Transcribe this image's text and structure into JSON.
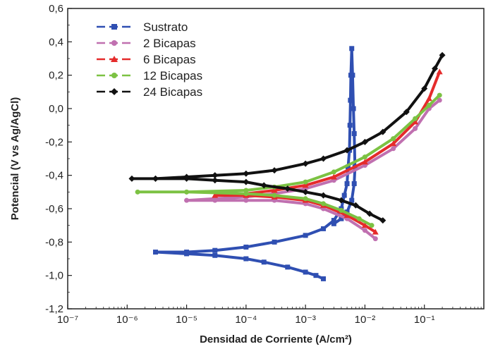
{
  "chart_data": {
    "type": "line",
    "xlabel": "Densidad de Corriente (A/cm²)",
    "ylabel": "Potencial (V vs Ag/AgCl)",
    "x_scale": "log",
    "xlim": [
      1e-07,
      1
    ],
    "ylim": [
      -1.2,
      0.6
    ],
    "x_ticks": [
      "10⁻⁷",
      "10⁻⁶",
      "10⁻⁵",
      "10⁻⁴",
      "10⁻³",
      "10⁻²",
      "10⁻¹"
    ],
    "y_ticks": [
      "-1,2",
      "-1,0",
      "-0,8",
      "-0,6",
      "-0,4",
      "-0,2",
      "0,0",
      "0,2",
      "0,4",
      "0,6"
    ],
    "legend_position": "top-left",
    "grid": false,
    "series": [
      {
        "name": "Sustrato",
        "color": "#2f4fb2",
        "marker": "square",
        "points": [
          [
            0.002,
            -1.02
          ],
          [
            0.0015,
            -1.0
          ],
          [
            0.001,
            -0.98
          ],
          [
            0.0005,
            -0.95
          ],
          [
            0.0002,
            -0.92
          ],
          [
            0.0001,
            -0.9
          ],
          [
            3e-05,
            -0.88
          ],
          [
            1e-05,
            -0.87
          ],
          [
            3e-06,
            -0.86
          ],
          [
            1e-05,
            -0.86
          ],
          [
            3e-05,
            -0.85
          ],
          [
            0.0001,
            -0.83
          ],
          [
            0.0003,
            -0.8
          ],
          [
            0.001,
            -0.76
          ],
          [
            0.002,
            -0.72
          ],
          [
            0.003,
            -0.67
          ],
          [
            0.004,
            -0.6
          ],
          [
            0.0045,
            -0.52
          ],
          [
            0.005,
            -0.45
          ],
          [
            0.0052,
            -0.35
          ],
          [
            0.0055,
            -0.25
          ],
          [
            0.0056,
            -0.1
          ],
          [
            0.0057,
            0.05
          ],
          [
            0.0058,
            0.2
          ],
          [
            0.006,
            0.36
          ],
          [
            0.0062,
            0.2
          ],
          [
            0.0064,
            0.0
          ],
          [
            0.0066,
            -0.15
          ],
          [
            0.0068,
            -0.35
          ],
          [
            0.0066,
            -0.45
          ],
          [
            0.006,
            -0.55
          ],
          [
            0.005,
            -0.62
          ],
          [
            0.004,
            -0.66
          ],
          [
            0.003,
            -0.69
          ]
        ]
      },
      {
        "name": "2 Bicapas",
        "color": "#c070b0",
        "marker": "circle",
        "points": [
          [
            0.015,
            -0.78
          ],
          [
            0.01,
            -0.73
          ],
          [
            0.005,
            -0.66
          ],
          [
            0.002,
            -0.6
          ],
          [
            0.001,
            -0.57
          ],
          [
            0.0003,
            -0.55
          ],
          [
            0.0001,
            -0.55
          ],
          [
            3e-05,
            -0.55
          ],
          [
            1e-05,
            -0.55
          ],
          [
            3e-05,
            -0.54
          ],
          [
            0.0001,
            -0.53
          ],
          [
            0.0003,
            -0.51
          ],
          [
            0.001,
            -0.48
          ],
          [
            0.003,
            -0.43
          ],
          [
            0.01,
            -0.34
          ],
          [
            0.03,
            -0.24
          ],
          [
            0.07,
            -0.12
          ],
          [
            0.12,
            0.0
          ],
          [
            0.18,
            0.05
          ]
        ]
      },
      {
        "name": "6 Bicapas",
        "color": "#e52b2b",
        "marker": "triangle",
        "points": [
          [
            0.015,
            -0.74
          ],
          [
            0.01,
            -0.7
          ],
          [
            0.005,
            -0.64
          ],
          [
            0.002,
            -0.58
          ],
          [
            0.001,
            -0.55
          ],
          [
            0.0003,
            -0.53
          ],
          [
            0.0001,
            -0.52
          ],
          [
            3e-05,
            -0.52
          ],
          [
            0.0001,
            -0.51
          ],
          [
            0.0003,
            -0.49
          ],
          [
            0.001,
            -0.46
          ],
          [
            0.003,
            -0.41
          ],
          [
            0.01,
            -0.32
          ],
          [
            0.03,
            -0.21
          ],
          [
            0.07,
            -0.08
          ],
          [
            0.12,
            0.06
          ],
          [
            0.18,
            0.22
          ]
        ]
      },
      {
        "name": "12 Bicapas",
        "color": "#7cc243",
        "marker": "circle",
        "points": [
          [
            0.013,
            -0.7
          ],
          [
            0.008,
            -0.66
          ],
          [
            0.004,
            -0.61
          ],
          [
            0.002,
            -0.57
          ],
          [
            0.001,
            -0.54
          ],
          [
            0.0003,
            -0.52
          ],
          [
            0.0001,
            -0.51
          ],
          [
            1e-05,
            -0.5
          ],
          [
            1.5e-06,
            -0.5
          ],
          [
            1e-05,
            -0.5
          ],
          [
            0.0001,
            -0.49
          ],
          [
            0.0003,
            -0.47
          ],
          [
            0.001,
            -0.44
          ],
          [
            0.003,
            -0.38
          ],
          [
            0.01,
            -0.29
          ],
          [
            0.03,
            -0.18
          ],
          [
            0.07,
            -0.06
          ],
          [
            0.12,
            0.02
          ],
          [
            0.18,
            0.08
          ]
        ]
      },
      {
        "name": "24 Bicapas",
        "color": "#111111",
        "marker": "diamond",
        "points": [
          [
            0.02,
            -0.67
          ],
          [
            0.012,
            -0.63
          ],
          [
            0.007,
            -0.58
          ],
          [
            0.004,
            -0.55
          ],
          [
            0.002,
            -0.52
          ],
          [
            0.001,
            -0.5
          ],
          [
            0.0005,
            -0.48
          ],
          [
            0.0002,
            -0.46
          ],
          [
            0.0001,
            -0.44
          ],
          [
            3e-05,
            -0.43
          ],
          [
            1e-05,
            -0.42
          ],
          [
            3e-06,
            -0.42
          ],
          [
            1.2e-06,
            -0.42
          ],
          [
            3e-06,
            -0.42
          ],
          [
            1e-05,
            -0.41
          ],
          [
            3e-05,
            -0.4
          ],
          [
            0.0001,
            -0.39
          ],
          [
            0.0003,
            -0.37
          ],
          [
            0.001,
            -0.33
          ],
          [
            0.002,
            -0.3
          ],
          [
            0.005,
            -0.25
          ],
          [
            0.01,
            -0.2
          ],
          [
            0.02,
            -0.14
          ],
          [
            0.05,
            -0.02
          ],
          [
            0.1,
            0.12
          ],
          [
            0.15,
            0.24
          ],
          [
            0.2,
            0.32
          ]
        ]
      }
    ]
  }
}
